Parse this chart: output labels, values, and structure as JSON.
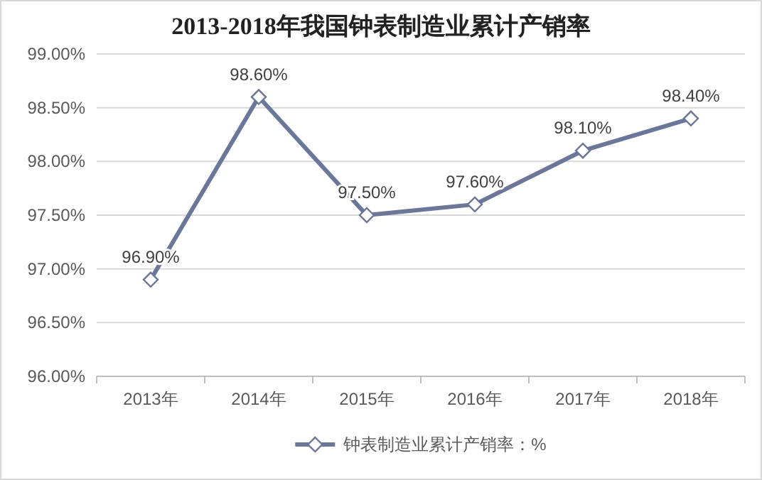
{
  "chart_data": {
    "type": "line",
    "title": "2013-2018年我国钟表制造业累计产销率",
    "categories": [
      "2013年",
      "2014年",
      "2015年",
      "2016年",
      "2017年",
      "2018年"
    ],
    "series": [
      {
        "name": "钟表制造业累计产销率：%",
        "color": "#6b7799",
        "values": [
          96.9,
          98.6,
          97.5,
          97.6,
          98.1,
          98.4
        ],
        "value_labels": [
          "96.90%",
          "98.60%",
          "97.50%",
          "97.60%",
          "98.10%",
          "98.40%"
        ]
      }
    ],
    "ylim": [
      96,
      99
    ],
    "yticks": [
      {
        "value": 96,
        "label": "96.00%"
      },
      {
        "value": 96.5,
        "label": "96.50%"
      },
      {
        "value": 97,
        "label": "97.00%"
      },
      {
        "value": 97.5,
        "label": "97.50%"
      },
      {
        "value": 98,
        "label": "98.00%"
      },
      {
        "value": 98.5,
        "label": "98.50%"
      },
      {
        "value": 99,
        "label": "99.00%"
      }
    ],
    "grid": "y",
    "legend": "bottom",
    "marker": "diamond",
    "line_style": "solid"
  }
}
